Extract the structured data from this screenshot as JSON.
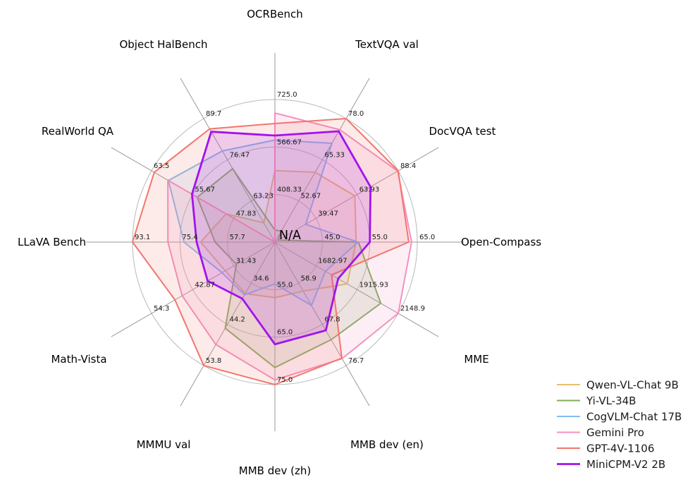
{
  "figure": {
    "background": "#ffffff",
    "grid_ring_color": "#b9b9b9",
    "spoke_color": "#9a9a9a"
  },
  "chart_data": {
    "type": "radar",
    "title": "",
    "center_label": "N/A",
    "grid": true,
    "rings": 3,
    "legend_position": "lower right",
    "axes": [
      {
        "label": "OCRBench",
        "min": 250,
        "max": 725,
        "ticks": [
          "408.33",
          "566.67",
          "725.0"
        ]
      },
      {
        "label": "TextVQA val",
        "min": 40,
        "max": 78,
        "ticks": [
          "52.67",
          "65.33",
          "78.0"
        ]
      },
      {
        "label": "DocVQA test",
        "min": 15,
        "max": 88.4,
        "ticks": [
          "39.47",
          "63.93",
          "88.4"
        ]
      },
      {
        "label": "Open-Compass",
        "min": 35,
        "max": 65,
        "ticks": [
          "45.0",
          "55.0",
          "65.0"
        ]
      },
      {
        "label": "MME",
        "min": 1450,
        "max": 2148.9,
        "ticks": [
          "1682.97",
          "1915.93",
          "2148.9"
        ]
      },
      {
        "label": "MMB dev (en)",
        "min": 50,
        "max": 76.7,
        "ticks": [
          "58.9",
          "67.8",
          "76.7"
        ]
      },
      {
        "label": "MMB dev (zh)",
        "min": 45,
        "max": 75,
        "ticks": [
          "55.0",
          "65.0",
          "75.0"
        ]
      },
      {
        "label": "MMMU val",
        "min": 25,
        "max": 53.8,
        "ticks": [
          "34.6",
          "44.2",
          "53.8"
        ]
      },
      {
        "label": "Math-Vista",
        "min": 20,
        "max": 54.3,
        "ticks": [
          "31.43",
          "42.87",
          "54.3"
        ]
      },
      {
        "label": "LLaVA Bench",
        "min": 40,
        "max": 93.1,
        "ticks": [
          "57.7",
          "75.4",
          "93.1"
        ]
      },
      {
        "label": "RealWorld QA",
        "min": 40,
        "max": 63.5,
        "ticks": [
          "47.83",
          "55.67",
          "63.5"
        ]
      },
      {
        "label": "Object HalBench",
        "min": 50,
        "max": 89.7,
        "ticks": [
          "63.23",
          "76.47",
          "89.7"
        ]
      }
    ],
    "series": [
      {
        "name": "Qwen-VL-Chat 9B",
        "color": "#e9be72",
        "line_width": 2,
        "values": [
          488,
          61.5,
          62.6,
          52.1,
          1860.0,
          60.6,
          56.7,
          37.0,
          33.8,
          67.7,
          49.3,
          56.2
        ]
      },
      {
        "name": "Yi-VL-34B",
        "color": "#82ad5b",
        "line_width": 2,
        "values": [
          290,
          43.4,
          16.9,
          52.6,
          2050.2,
          71.1,
          71.4,
          45.1,
          30.7,
          62.3,
          54.8,
          73.6
        ]
      },
      {
        "name": "CogVLM-Chat 17B",
        "color": "#82bcf3",
        "line_width": 2,
        "values": [
          590,
          70.4,
          33.3,
          52.5,
          1736.6,
          63.7,
          53.8,
          37.3,
          34.7,
          73.9,
          60.3,
          79.3
        ]
      },
      {
        "name": "Gemini Pro",
        "color": "#f490c0",
        "line_width": 2,
        "values": [
          680,
          74.6,
          88.1,
          63.8,
          2148.9,
          75.2,
          74.0,
          48.9,
          45.8,
          79.9,
          60.4,
          null
        ]
      },
      {
        "name": "GPT-4V-1106",
        "color": "#f3766d",
        "line_width": 2,
        "values": [
          645,
          78.0,
          88.4,
          63.2,
          1771.5,
          75.1,
          75.0,
          53.8,
          47.8,
          93.1,
          63.0,
          86.4
        ]
      },
      {
        "name": "MiniCPM-V2 2B",
        "color": "#a213ec",
        "line_width": 2.8,
        "values": [
          605,
          74.1,
          71.9,
          55.0,
          1808.6,
          69.1,
          66.5,
          38.2,
          38.7,
          69.2,
          55.8,
          85.5
        ]
      }
    ]
  }
}
